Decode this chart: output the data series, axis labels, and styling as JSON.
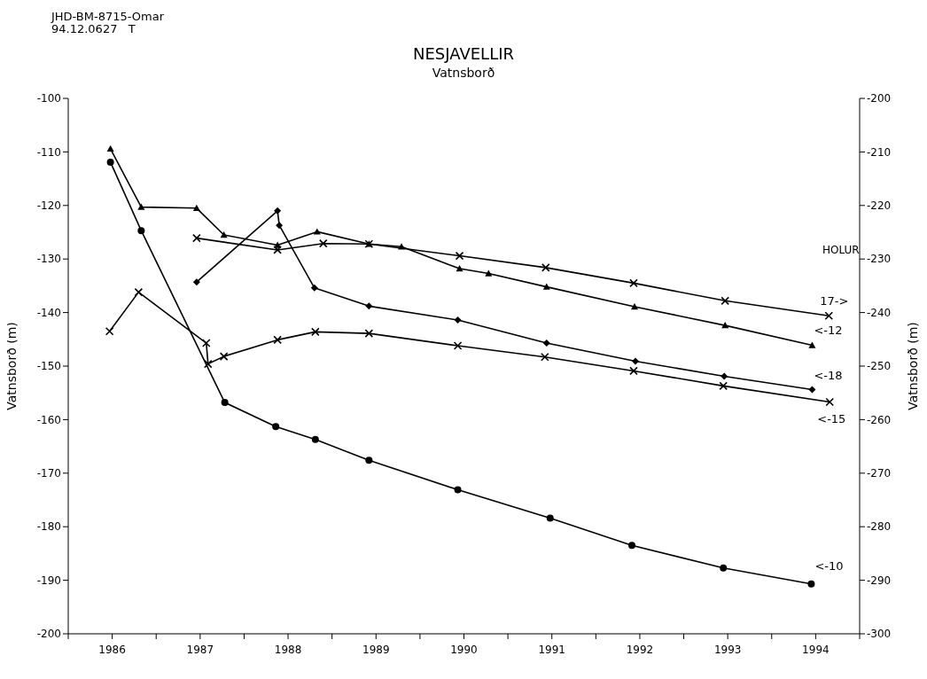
{
  "chart_data": {
    "type": "line",
    "title": "NESJAVELLIR",
    "subtitle": "Vatnsborð",
    "ylabel": "Vatnsborð (m)",
    "y2label": "Vatnsborð (m)",
    "annotations": [
      "JHD-BM-8715-Omar",
      "94.12.0627   T",
      "HOLUR"
    ],
    "xlim": [
      1986,
      1995
    ],
    "xticks": [
      {
        "value": 1986,
        "label": null
      },
      {
        "value": 1986.5,
        "label": "1986"
      },
      {
        "value": 1987,
        "label": null
      },
      {
        "value": 1987.5,
        "label": "1987"
      },
      {
        "value": 1988,
        "label": null
      },
      {
        "value": 1988.5,
        "label": "1988"
      },
      {
        "value": 1989,
        "label": null
      },
      {
        "value": 1989.5,
        "label": "1989"
      },
      {
        "value": 1990,
        "label": null
      },
      {
        "value": 1990.5,
        "label": "1990"
      },
      {
        "value": 1991,
        "label": null
      },
      {
        "value": 1991.5,
        "label": "1991"
      },
      {
        "value": 1992,
        "label": null
      },
      {
        "value": 1992.5,
        "label": "1992"
      },
      {
        "value": 1993,
        "label": null
      },
      {
        "value": 1993.5,
        "label": "1993"
      },
      {
        "value": 1994,
        "label": null
      },
      {
        "value": 1994.5,
        "label": "1994"
      },
      {
        "value": 1995,
        "label": null
      }
    ],
    "ylim": [
      -200,
      -100
    ],
    "yticks": [
      -200,
      -190,
      -180,
      -170,
      -160,
      -150,
      -140,
      -130,
      -120,
      -110,
      -100
    ],
    "y2lim": [
      -300,
      -200
    ],
    "y2ticks": [
      -300,
      -290,
      -280,
      -270,
      -260,
      -250,
      -240,
      -230,
      -220,
      -210,
      -200
    ],
    "line_style": "solid",
    "series": [
      {
        "name": "17->",
        "color": "#000000",
        "marker": "cross",
        "axis": "y2",
        "x": [
          1987.46,
          1988.38,
          1988.9,
          1989.42,
          1990.45,
          1991.43,
          1992.43,
          1993.47,
          1994.65
        ],
        "values": [
          -226.1,
          -228.3,
          -227.1,
          -227.2,
          -229.4,
          -231.6,
          -234.5,
          -237.8,
          -240.6
        ]
      },
      {
        "name": "<-12",
        "color": "#000000",
        "marker": "triangle",
        "x": [
          1986.48,
          1986.83,
          1987.46,
          1987.77,
          1988.38,
          1988.83,
          1989.42,
          1989.79,
          1990.45,
          1990.78,
          1991.44,
          1992.44,
          1993.47,
          1994.46
        ],
        "values": [
          -109.4,
          -120.3,
          -120.5,
          -125.5,
          -127.4,
          -124.9,
          -127.2,
          -127.7,
          -131.8,
          -132.7,
          -135.2,
          -138.9,
          -142.4,
          -146.1
        ]
      },
      {
        "name": "<-18",
        "color": "#000000",
        "marker": "diamond",
        "x": [
          1987.46,
          1988.38,
          1988.4,
          1988.8,
          1989.42,
          1990.43,
          1991.44,
          1992.45,
          1993.46,
          1994.46
        ],
        "values": [
          -134.3,
          -121.0,
          -123.7,
          -135.4,
          -138.8,
          -141.4,
          -145.7,
          -149.1,
          -151.9,
          -154.4
        ]
      },
      {
        "name": "<-15",
        "color": "#000000",
        "marker": "cross",
        "x": [
          1986.47,
          1986.8,
          1987.57,
          1987.59,
          1987.77,
          1988.38,
          1988.81,
          1989.42,
          1990.43,
          1991.42,
          1992.43,
          1993.45,
          1994.66
        ],
        "values": [
          -143.5,
          -136.2,
          -145.7,
          -149.6,
          -148.2,
          -145.1,
          -143.6,
          -143.9,
          -146.2,
          -148.3,
          -150.9,
          -153.7,
          -156.7
        ]
      },
      {
        "name": "<-10",
        "color": "#000000",
        "marker": "circle",
        "x": [
          1986.48,
          1986.83,
          1987.78,
          1988.36,
          1988.81,
          1989.42,
          1990.43,
          1991.48,
          1992.41,
          1993.45,
          1994.45
        ],
        "values": [
          -111.9,
          -124.7,
          -156.8,
          -161.3,
          -163.7,
          -167.6,
          -173.1,
          -178.4,
          -183.5,
          -187.7,
          -190.7
        ]
      }
    ]
  }
}
